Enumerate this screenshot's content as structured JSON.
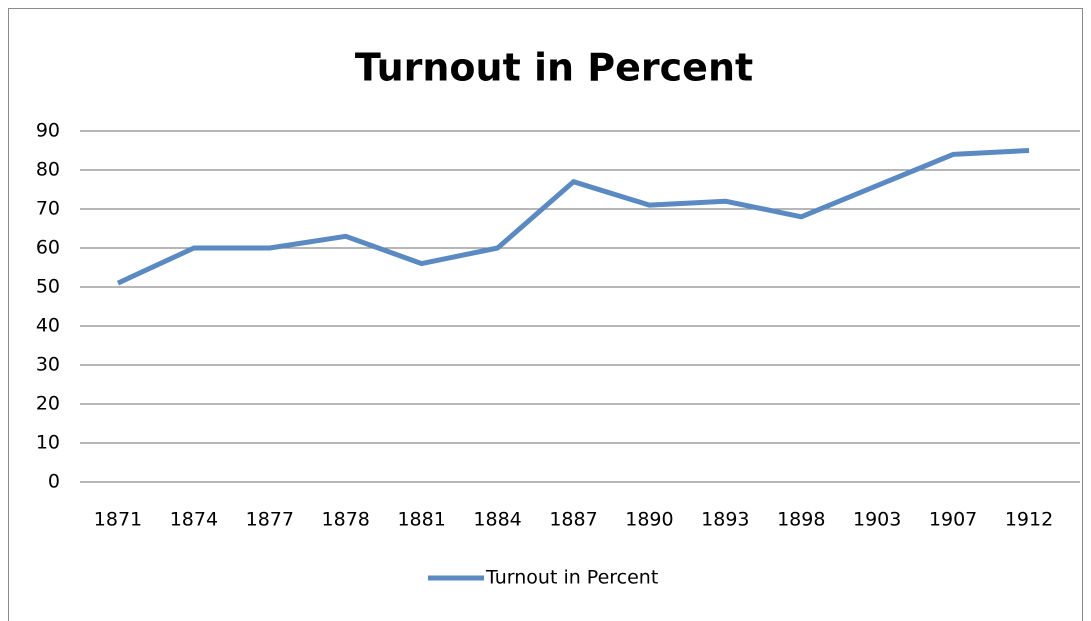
{
  "chart_data": {
    "type": "line",
    "title": "Turnout in Percent",
    "categories": [
      "1871",
      "1874",
      "1877",
      "1878",
      "1881",
      "1884",
      "1887",
      "1890",
      "1893",
      "1898",
      "1903",
      "1907",
      "1912"
    ],
    "series": [
      {
        "name": "Turnout in Percent",
        "color": "#5b8ac2",
        "values": [
          51,
          60,
          60,
          63,
          56,
          60,
          77,
          71,
          72,
          68,
          76,
          84,
          85
        ]
      }
    ],
    "ylim": [
      0,
      90
    ],
    "yticks": [
      0,
      10,
      20,
      30,
      40,
      50,
      60,
      70,
      80,
      90
    ],
    "grid": true,
    "legend": "bottom"
  }
}
